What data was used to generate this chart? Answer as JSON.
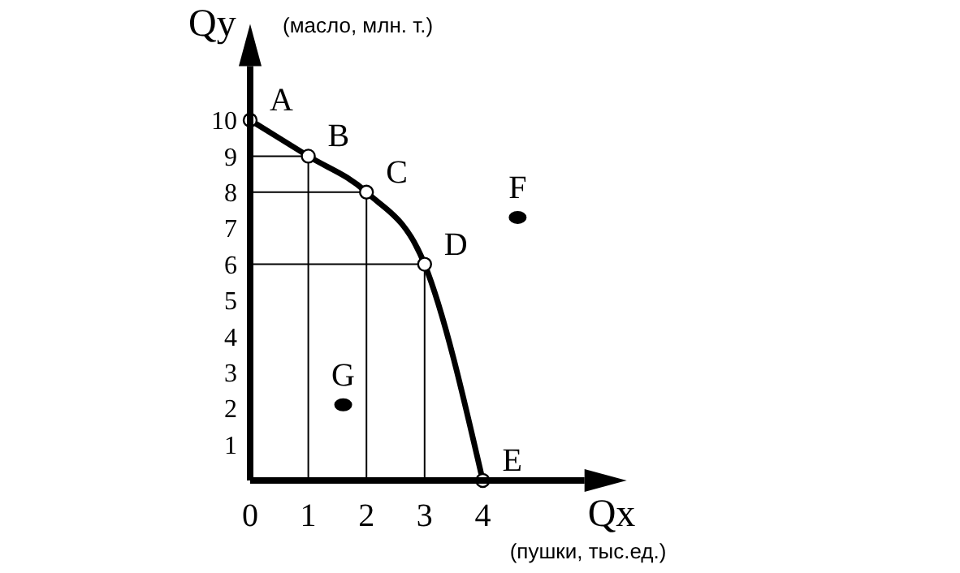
{
  "chart_data": {
    "type": "line",
    "xlabel": "Qx",
    "ylabel": "Qy",
    "annotations": [
      "(масло, млн. т.)",
      "(пушки, тыс.ед.)"
    ],
    "xlim": [
      0,
      5.75
    ],
    "ylim": [
      0,
      11.5
    ],
    "xticks": [
      0,
      1,
      2,
      3,
      4
    ],
    "yticks": [
      1,
      2,
      3,
      4,
      5,
      6,
      7,
      8,
      9,
      10
    ],
    "series": [
      {
        "color": "#000000",
        "marker": "circle",
        "x": [
          0,
          1,
          2,
          3,
          4
        ],
        "values": [
          10,
          9,
          8,
          6,
          0
        ],
        "value_labels": [
          "A",
          "B",
          "C",
          "D",
          "E"
        ]
      },
      {
        "type": "scatter",
        "color": "#000000",
        "marker": "circle",
        "x": [
          4.6,
          1.6
        ],
        "values": [
          7.3,
          2.1
        ],
        "value_labels": [
          "F",
          "G"
        ]
      }
    ]
  }
}
